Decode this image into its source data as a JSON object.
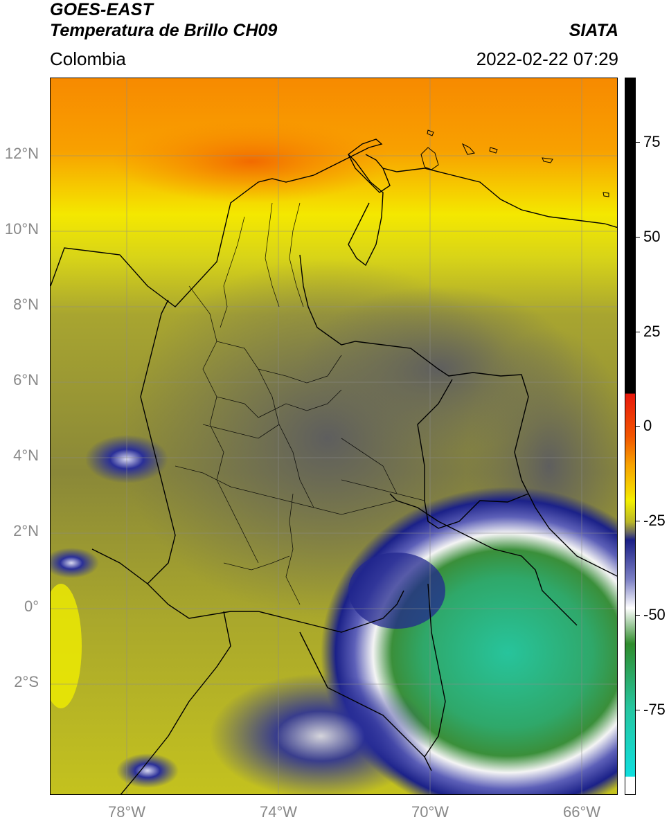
{
  "header": {
    "satellite": "GOES-EAST",
    "product": "Temperatura de Brillo CH09",
    "organization": "SIATA",
    "region": "Colombia",
    "timestamp": "2022-02-22 07:29"
  },
  "map": {
    "lat_labels": [
      "12°N",
      "10°N",
      "8°N",
      "6°N",
      "4°N",
      "2°N",
      "0°",
      "2°S"
    ],
    "lon_labels": [
      "78°W",
      "74°W",
      "70°W",
      "66°W"
    ]
  },
  "colorbar": {
    "labels": [
      "75",
      "50",
      "25",
      "0",
      "-25",
      "-50",
      "-75"
    ],
    "colors": {
      "black": "#000000",
      "red": "#e8180c",
      "orange": "#f7a200",
      "yellow": "#f3f000",
      "olive": "#b9b628",
      "gray": "#646464",
      "navy": "#1a1f86",
      "white": "#ffffff",
      "green": "#2f8c2c",
      "teal": "#26c6a0",
      "cyan": "#10dede"
    }
  }
}
